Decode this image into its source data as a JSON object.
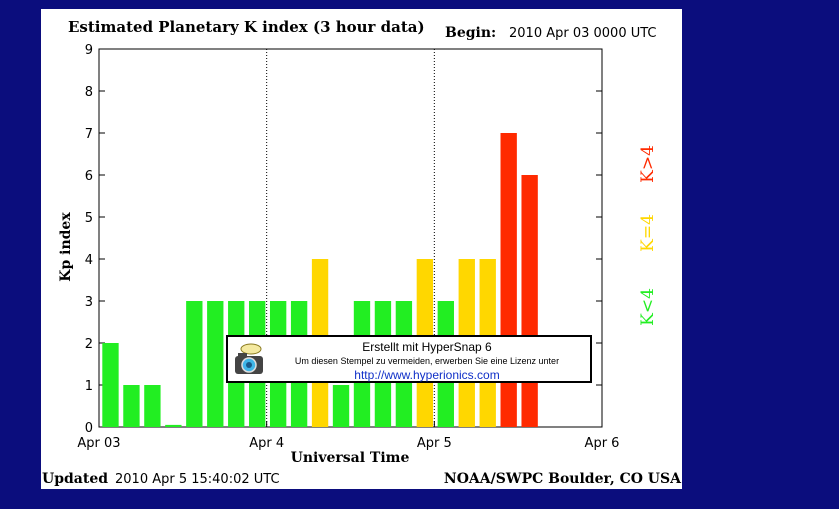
{
  "header": {
    "title": "Estimated Planetary K index (3 hour data)",
    "begin_label": "Begin:",
    "begin_value": "2010 Apr 03 0000 UTC"
  },
  "footer": {
    "updated_label": "Updated",
    "updated_value": "2010 Apr  5 15:40:02 UTC",
    "source": "NOAA/SWPC Boulder, CO USA"
  },
  "legend": [
    {
      "label": "K<4",
      "color": "#22ee22"
    },
    {
      "label": "K=4",
      "color": "#ffd700"
    },
    {
      "label": "K>4",
      "color": "#ff2a00"
    }
  ],
  "stamp": {
    "line1": "Erstellt mit HyperSnap 6",
    "line2": "Um diesen Stempel zu vermeiden, erwerben Sie eine Lizenz unter",
    "line3": "http://www.hyperionics.com"
  },
  "chart_data": {
    "type": "bar",
    "title": "Estimated Planetary K index (3 hour data)",
    "xlabel": "Universal Time",
    "ylabel": "Kp index",
    "ylim": [
      0,
      9
    ],
    "yticks": [
      "0",
      "1",
      "2",
      "3",
      "4",
      "5",
      "6",
      "7",
      "8",
      "9"
    ],
    "xticks": [
      "Apr 03",
      "Apr 4",
      "Apr 5",
      "Apr 6"
    ],
    "grid": "dotted vertical lines at day boundaries",
    "colors": {
      "below": "#22ee22",
      "equal": "#ffd700",
      "above": "#ff2a00"
    },
    "values": [
      2,
      1,
      1,
      0.05,
      3,
      3,
      3,
      3,
      3,
      3,
      4,
      1,
      3,
      3,
      3,
      4,
      3,
      4,
      4,
      7,
      6
    ]
  }
}
